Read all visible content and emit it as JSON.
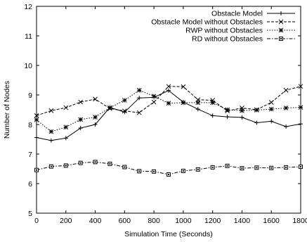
{
  "chart_data": {
    "type": "line",
    "xlabel": "Simulation Time (Seconds)",
    "ylabel": "Number of Nodes",
    "xlim": [
      0,
      1800
    ],
    "ylim": [
      5,
      12
    ],
    "xticks": [
      "0",
      "200",
      "400",
      "600",
      "800",
      "1000",
      "1200",
      "1400",
      "1600",
      "1800"
    ],
    "yticks": [
      "5",
      "6",
      "7",
      "8",
      "9",
      "10",
      "11",
      "12"
    ],
    "legend_position": "top-right",
    "grid": false,
    "x": [
      0,
      100,
      200,
      300,
      400,
      500,
      600,
      700,
      800,
      900,
      1000,
      1100,
      1200,
      1300,
      1400,
      1500,
      1600,
      1700,
      1800
    ],
    "series": [
      {
        "name": "Obstacle Model",
        "marker": "plus",
        "dash": "solid",
        "values": [
          7.56,
          7.46,
          7.54,
          7.88,
          8.0,
          8.58,
          8.42,
          8.9,
          8.92,
          9.15,
          8.76,
          8.52,
          8.3,
          8.26,
          8.24,
          8.06,
          8.11,
          7.93,
          8.02
        ]
      },
      {
        "name": "Obstacle Model without Obstacles",
        "marker": "cross",
        "dash": "dashed",
        "values": [
          8.3,
          8.47,
          8.57,
          8.76,
          8.86,
          8.54,
          8.46,
          8.4,
          8.76,
          9.29,
          9.28,
          8.84,
          8.82,
          8.46,
          8.56,
          8.5,
          8.75,
          9.16,
          9.29
        ]
      },
      {
        "name": "RWP without Obstacles",
        "marker": "asterisk",
        "dash": "dotted",
        "values": [
          8.16,
          7.76,
          7.91,
          8.17,
          8.25,
          8.57,
          8.82,
          9.16,
          8.96,
          8.72,
          8.74,
          8.74,
          8.74,
          8.5,
          8.47,
          8.49,
          8.52,
          8.56,
          8.58
        ]
      },
      {
        "name": "RD without Obstacles",
        "marker": "square",
        "dash": "dashdot",
        "values": [
          6.46,
          6.58,
          6.61,
          6.7,
          6.73,
          6.67,
          6.56,
          6.42,
          6.41,
          6.31,
          6.43,
          6.48,
          6.55,
          6.6,
          6.52,
          6.54,
          6.53,
          6.55,
          6.57
        ]
      }
    ]
  }
}
